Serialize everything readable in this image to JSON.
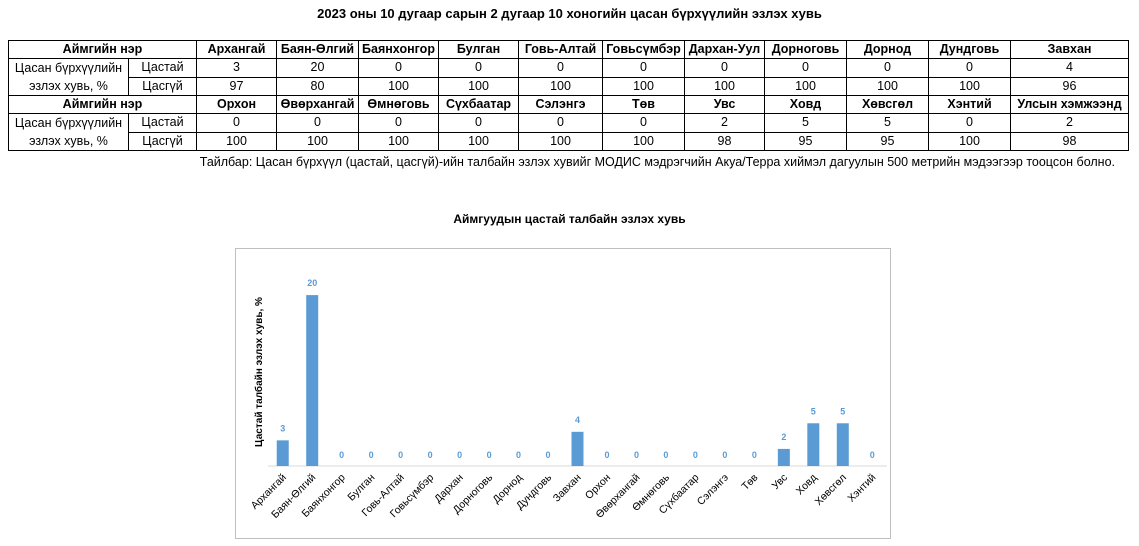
{
  "page": {
    "title": "2023 оны 10 дугаар сарын 2 дугаар 10 хоногийн цасан бүрхүүлийн эзлэх хувь",
    "note": "Тайлбар: Цасан бүрхүүл (цастай, цасгүй)-ийн талбайн эзлэх хувийг МОДИС мэдрэгчийн Акуа/Терра хиймэл дагуулын 500 метрийн мэдээгээр тооцсон болно."
  },
  "table": {
    "header_label": "Аймгийн нэр",
    "group_label": "Цасан бүрхүүлийн эзлэх хувь, %",
    "row_snow_label": "Цастай",
    "row_nosnow_label": "Цасгүй",
    "block1": {
      "names": [
        "Архангай",
        "Баян-Өлгий",
        "Баянхонгор",
        "Булган",
        "Говь-Алтай",
        "Говьсүмбэр",
        "Дархан-Уул",
        "Дорноговь",
        "Дорнод",
        "Дундговь",
        "Завхан"
      ],
      "snow": [
        "3",
        "20",
        "0",
        "0",
        "0",
        "0",
        "0",
        "0",
        "0",
        "0",
        "4"
      ],
      "nosnow": [
        "97",
        "80",
        "100",
        "100",
        "100",
        "100",
        "100",
        "100",
        "100",
        "100",
        "96"
      ]
    },
    "block2": {
      "names": [
        "Орхон",
        "Өвөрхангай",
        "Өмнөговь",
        "Сүхбаатар",
        "Сэлэнгэ",
        "Төв",
        "Увс",
        "Ховд",
        "Хөвсгөл",
        "Хэнтий",
        "Улсын хэмжээнд"
      ],
      "snow": [
        "0",
        "0",
        "0",
        "0",
        "0",
        "0",
        "2",
        "5",
        "5",
        "0",
        "2"
      ],
      "nosnow": [
        "100",
        "100",
        "100",
        "100",
        "100",
        "100",
        "98",
        "95",
        "95",
        "100",
        "98"
      ]
    }
  },
  "chart_data": {
    "type": "bar",
    "title": "Аймгуудын цастай талбайн эзлэх хувь",
    "ylabel": "Цастай талбайн эзлэх хувь, %",
    "categories": [
      "Архангай",
      "Баян-Өлгий",
      "Баянхонгор",
      "Булган",
      "Говь-Алтай",
      "Говьсүмбэр",
      "Дархан",
      "Дорноговь",
      "Дорнод",
      "Дундговь",
      "Завхан",
      "Орхон",
      "Өвөрхангай",
      "Өмнөговь",
      "Сүхбаатар",
      "Сэлэнгэ",
      "Төв",
      "Увс",
      "Ховд",
      "Хөвсгөл",
      "Хэнтий"
    ],
    "values": [
      3,
      20,
      0,
      0,
      0,
      0,
      0,
      0,
      0,
      0,
      4,
      0,
      0,
      0,
      0,
      0,
      0,
      2,
      5,
      5,
      0
    ],
    "ylim": [
      0,
      22
    ],
    "grid": false,
    "data_labels": true,
    "bar_color": "#5b9bd5",
    "label_color": "#5b9bd5"
  }
}
